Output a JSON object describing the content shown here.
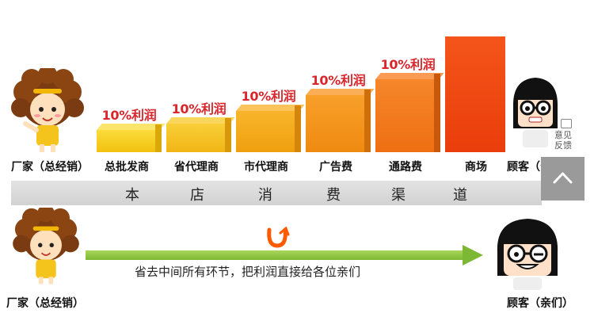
{
  "chart_data": {
    "type": "bar",
    "categories": [
      "总批发商",
      "省代理商",
      "市代理商",
      "广告费",
      "通路费",
      "商场"
    ],
    "data_labels": [
      "10%利润",
      "10%利润",
      "10%利润",
      "10%利润",
      "10%利润",
      ""
    ],
    "values": [
      1,
      2,
      3,
      4,
      5,
      8
    ],
    "colors": {
      "bar1": "#f7cd1f",
      "bar2": "#f6c02a",
      "bar3": "#f6ad1b",
      "bar4": "#f7941a",
      "bar5": "#f47a18",
      "bar6": "#f04a0f"
    }
  },
  "top": {
    "left_label": "厂家（总经销）",
    "right_label": "顾客（亲们）",
    "band_chars": [
      "本",
      "店",
      "消",
      "费",
      "渠",
      "道"
    ]
  },
  "bottom": {
    "left_label": "厂家（总经销）",
    "right_label": "顾客（亲们）",
    "arrow_text": "省去中间所有环节，把利润直接给各位亲们",
    "arrow_color": "#7cb833",
    "smile_color": "#ff5a00"
  },
  "widget": {
    "feedback_text": "意见反馈",
    "icons": [
      "feedback-icon",
      "chevron-up-icon"
    ]
  }
}
